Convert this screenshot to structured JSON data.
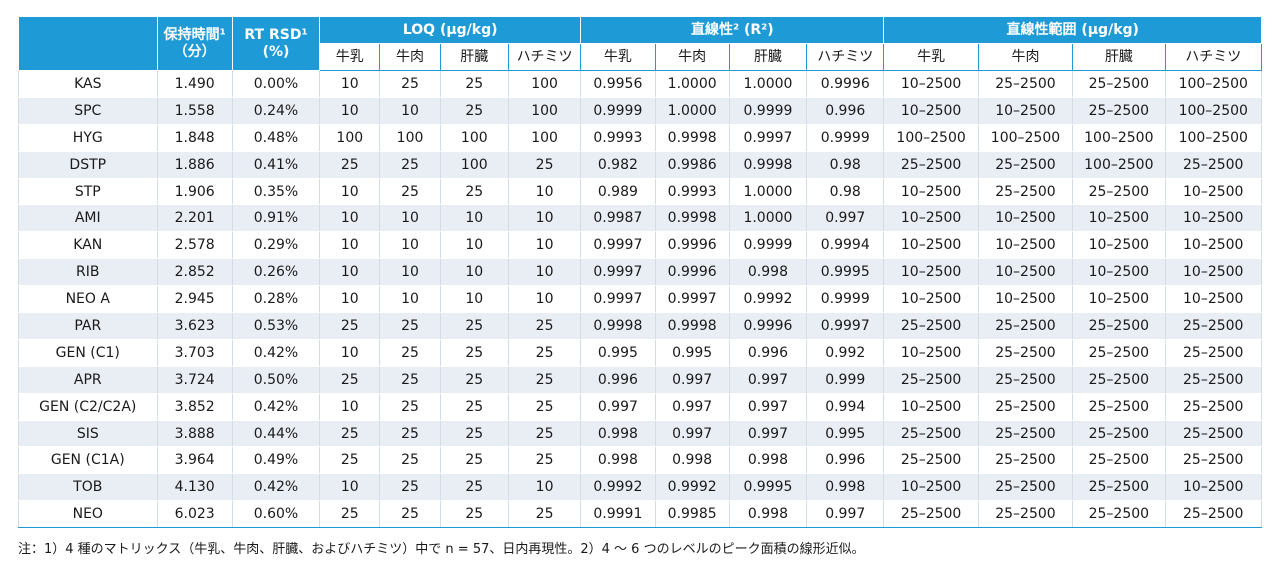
{
  "table": {
    "header": {
      "retention": "保持時間¹",
      "retention_unit": "（分）",
      "rsd": "RT RSD¹",
      "rsd_unit": "(%)",
      "loq": "LOQ (µg/kg)",
      "linearity": "直線性² (R²)",
      "range": "直線性範囲 (µg/kg)",
      "matrices": [
        "牛乳",
        "牛肉",
        "肝臓",
        "ハチミツ"
      ]
    },
    "rows": [
      [
        "KAS",
        "1.490",
        "0.00%",
        "10",
        "25",
        "25",
        "100",
        "0.9956",
        "1.0000",
        "1.0000",
        "0.9996",
        "10–2500",
        "25–2500",
        "25–2500",
        "100–2500"
      ],
      [
        "SPC",
        "1.558",
        "0.24%",
        "10",
        "10",
        "25",
        "100",
        "0.9999",
        "1.0000",
        "0.9999",
        "0.996",
        "10–2500",
        "10–2500",
        "25–2500",
        "100–2500"
      ],
      [
        "HYG",
        "1.848",
        "0.48%",
        "100",
        "100",
        "100",
        "100",
        "0.9993",
        "0.9998",
        "0.9997",
        "0.9999",
        "100–2500",
        "100–2500",
        "100–2500",
        "100–2500"
      ],
      [
        "DSTP",
        "1.886",
        "0.41%",
        "25",
        "25",
        "100",
        "25",
        "0.982",
        "0.9986",
        "0.9998",
        "0.98",
        "25–2500",
        "25–2500",
        "100–2500",
        "25–2500"
      ],
      [
        "STP",
        "1.906",
        "0.35%",
        "10",
        "25",
        "25",
        "10",
        "0.989",
        "0.9993",
        "1.0000",
        "0.98",
        "10–2500",
        "25–2500",
        "25–2500",
        "10–2500"
      ],
      [
        "AMI",
        "2.201",
        "0.91%",
        "10",
        "10",
        "10",
        "10",
        "0.9987",
        "0.9998",
        "1.0000",
        "0.997",
        "10–2500",
        "10–2500",
        "10–2500",
        "10–2500"
      ],
      [
        "KAN",
        "2.578",
        "0.29%",
        "10",
        "10",
        "10",
        "10",
        "0.9997",
        "0.9996",
        "0.9999",
        "0.9994",
        "10–2500",
        "10–2500",
        "10–2500",
        "10–2500"
      ],
      [
        "RIB",
        "2.852",
        "0.26%",
        "10",
        "10",
        "10",
        "10",
        "0.9997",
        "0.9996",
        "0.998",
        "0.9995",
        "10–2500",
        "10–2500",
        "10–2500",
        "10–2500"
      ],
      [
        "NEO A",
        "2.945",
        "0.28%",
        "10",
        "10",
        "10",
        "10",
        "0.9997",
        "0.9997",
        "0.9992",
        "0.9999",
        "10–2500",
        "10–2500",
        "10–2500",
        "10–2500"
      ],
      [
        "PAR",
        "3.623",
        "0.53%",
        "25",
        "25",
        "25",
        "25",
        "0.9998",
        "0.9998",
        "0.9996",
        "0.9997",
        "25–2500",
        "25–2500",
        "25–2500",
        "25–2500"
      ],
      [
        "GEN (C1)",
        "3.703",
        "0.42%",
        "10",
        "25",
        "25",
        "25",
        "0.995",
        "0.995",
        "0.996",
        "0.992",
        "10–2500",
        "25–2500",
        "25–2500",
        "25–2500"
      ],
      [
        "APR",
        "3.724",
        "0.50%",
        "25",
        "25",
        "25",
        "25",
        "0.996",
        "0.997",
        "0.997",
        "0.999",
        "25–2500",
        "25–2500",
        "25–2500",
        "25–2500"
      ],
      [
        "GEN (C2/C2A)",
        "3.852",
        "0.42%",
        "10",
        "25",
        "25",
        "25",
        "0.997",
        "0.997",
        "0.997",
        "0.994",
        "10–2500",
        "25–2500",
        "25–2500",
        "25–2500"
      ],
      [
        "SIS",
        "3.888",
        "0.44%",
        "25",
        "25",
        "25",
        "25",
        "0.998",
        "0.997",
        "0.997",
        "0.995",
        "25–2500",
        "25–2500",
        "25–2500",
        "25–2500"
      ],
      [
        "GEN (C1A)",
        "3.964",
        "0.49%",
        "25",
        "25",
        "25",
        "25",
        "0.998",
        "0.998",
        "0.998",
        "0.996",
        "25–2500",
        "25–2500",
        "25–2500",
        "25–2500"
      ],
      [
        "TOB",
        "4.130",
        "0.42%",
        "10",
        "25",
        "25",
        "10",
        "0.9992",
        "0.9992",
        "0.9995",
        "0.998",
        "10–2500",
        "25–2500",
        "25–2500",
        "10–2500"
      ],
      [
        "NEO",
        "6.023",
        "0.60%",
        "25",
        "25",
        "25",
        "25",
        "0.9991",
        "0.9985",
        "0.998",
        "0.997",
        "25–2500",
        "25–2500",
        "25–2500",
        "25–2500"
      ]
    ]
  },
  "note": "注：1）4 種のマトリックス（牛乳、牛肉、肝臓、およびハチミツ）中で n = 57、日内再現性。2）4 ～ 6 つのレベルのピーク面積の線形近似。",
  "colors": {
    "header_bg": "#1e9bd7",
    "header_text": "#ffffff",
    "stripe": "#e9eef5"
  }
}
